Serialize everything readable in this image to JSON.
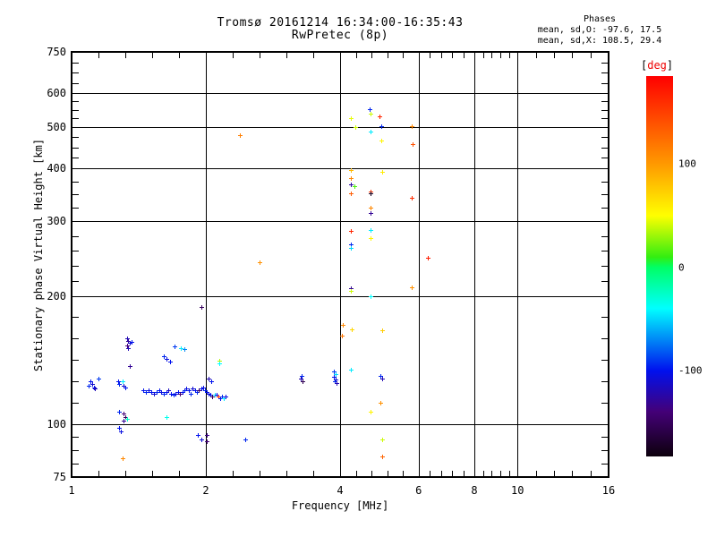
{
  "title": {
    "line1": "Tromsø 20161214 16:34:00-16:35:43",
    "line2": "RwPretec (8p)"
  },
  "annotation": {
    "header": "Phases",
    "line_o": "mean, sd,O: -97.6, 17.5",
    "line_x": "mean, sd,X: 108.5, 29.4"
  },
  "chart_data": {
    "type": "scatter",
    "title": "Tromsø 20161214 16:34:00-16:35:43",
    "subtitle": "RwPretec (8p)",
    "xlabel": "Frequency [MHz]",
    "ylabel": "Stationary phase Virtual Height [km]",
    "x_scale": "log",
    "y_scale": "log",
    "xlim": [
      1,
      16
    ],
    "ylim": [
      75,
      750
    ],
    "x_majors": [
      1,
      2,
      4,
      6,
      8,
      10,
      16
    ],
    "y_majors": [
      75,
      100,
      200,
      300,
      400,
      500,
      600,
      750
    ],
    "x_minor_per_interval": 4,
    "y_minor_per_interval": [
      3,
      5,
      4,
      3,
      3,
      3,
      3
    ],
    "grid": true,
    "marker": "plus",
    "colorbar": {
      "bracket_open": "[",
      "label_text": "deg",
      "bracket_close": "]",
      "label_color": "#ee0000",
      "ticks": [
        100,
        0,
        -100
      ],
      "value_range": [
        185,
        -183
      ],
      "anchors": [
        [
          185,
          "#ff0000"
        ],
        [
          100,
          "#ff9900"
        ],
        [
          50,
          "#ffff00"
        ],
        [
          10,
          "#33ee11"
        ],
        [
          0,
          "#00ff66"
        ],
        [
          -40,
          "#00ffff"
        ],
        [
          -100,
          "#0011ee"
        ],
        [
          -140,
          "#440077"
        ],
        [
          -183,
          "#0c000c"
        ]
      ]
    },
    "points": [
      [
        1.45,
        120,
        -100
      ],
      [
        1.47,
        119,
        -95
      ],
      [
        1.49,
        120,
        -105
      ],
      [
        1.51,
        119,
        -100
      ],
      [
        1.53,
        118,
        -110
      ],
      [
        1.55,
        119,
        -95
      ],
      [
        1.57,
        120,
        -100
      ],
      [
        1.59,
        119,
        -105
      ],
      [
        1.61,
        118,
        -95
      ],
      [
        1.63,
        119,
        -100
      ],
      [
        1.65,
        120,
        -115
      ],
      [
        1.67,
        118,
        -100
      ],
      [
        1.69,
        117,
        -95
      ],
      [
        1.71,
        118,
        -105
      ],
      [
        1.73,
        119,
        -100
      ],
      [
        1.75,
        118,
        -140
      ],
      [
        1.77,
        119,
        -100
      ],
      [
        1.79,
        120,
        -95
      ],
      [
        1.81,
        121,
        -105
      ],
      [
        1.83,
        120,
        -100
      ],
      [
        1.85,
        118,
        -95
      ],
      [
        1.87,
        121,
        -110
      ],
      [
        1.89,
        120,
        -100
      ],
      [
        1.91,
        119,
        -95
      ],
      [
        1.93,
        120,
        -150
      ],
      [
        1.95,
        121,
        -100
      ],
      [
        1.97,
        122,
        -105
      ],
      [
        1.99,
        120,
        -95
      ],
      [
        2.01,
        119,
        -100
      ],
      [
        2.03,
        118,
        -110
      ],
      [
        2.05,
        117,
        -100
      ],
      [
        2.07,
        116,
        -150
      ],
      [
        2.09,
        117,
        -45
      ],
      [
        2.11,
        117,
        -100
      ],
      [
        2.13,
        116,
        160
      ],
      [
        2.15,
        115,
        -100
      ],
      [
        2.17,
        116,
        -95
      ],
      [
        2.19,
        115,
        -45
      ],
      [
        2.21,
        116,
        -105
      ],
      [
        1.09,
        123,
        -95
      ],
      [
        1.1,
        126,
        -100
      ],
      [
        1.11,
        124,
        -110
      ],
      [
        1.12,
        122,
        -100
      ],
      [
        1.13,
        121,
        -120
      ],
      [
        1.15,
        128,
        -90
      ],
      [
        1.27,
        126,
        -100
      ],
      [
        1.28,
        124,
        -95
      ],
      [
        1.3,
        126,
        -45
      ],
      [
        1.31,
        123,
        -110
      ],
      [
        1.32,
        122,
        -100
      ],
      [
        1.28,
        107,
        -95
      ],
      [
        1.28,
        98,
        -100
      ],
      [
        1.29,
        96,
        -105
      ],
      [
        1.31,
        106,
        -140
      ],
      [
        1.32,
        104,
        -150
      ],
      [
        1.31,
        102,
        -130
      ],
      [
        1.33,
        103,
        -25
      ],
      [
        1.3,
        83,
        110
      ],
      [
        1.33,
        159,
        -120
      ],
      [
        1.34,
        157,
        -130
      ],
      [
        1.35,
        155,
        -110
      ],
      [
        1.33,
        153,
        -140
      ],
      [
        1.34,
        151,
        -120
      ],
      [
        1.36,
        156,
        -100
      ],
      [
        1.35,
        137,
        -130
      ],
      [
        1.61,
        144,
        -95
      ],
      [
        1.63,
        142,
        -105
      ],
      [
        1.66,
        140,
        -100
      ],
      [
        1.7,
        152,
        -90
      ],
      [
        1.76,
        151,
        -45
      ],
      [
        1.79,
        150,
        -70
      ],
      [
        1.63,
        104,
        -35
      ],
      [
        1.92,
        94,
        -100
      ],
      [
        1.95,
        92,
        -110
      ],
      [
        2.01,
        94,
        -135
      ],
      [
        2.01,
        91,
        -140
      ],
      [
        2.45,
        92,
        -95
      ],
      [
        2.03,
        128,
        -120
      ],
      [
        2.06,
        126,
        -100
      ],
      [
        1.95,
        188,
        -150
      ],
      [
        2.14,
        141,
        35
      ],
      [
        2.14,
        139,
        -40
      ],
      [
        2.38,
        478,
        115
      ],
      [
        2.64,
        240,
        105
      ],
      [
        3.28,
        130,
        -95
      ],
      [
        3.27,
        128,
        -120
      ],
      [
        3.29,
        126,
        -155
      ],
      [
        3.88,
        133,
        -90
      ],
      [
        3.9,
        131,
        -50
      ],
      [
        3.87,
        129,
        -100
      ],
      [
        3.91,
        127,
        -110
      ],
      [
        3.89,
        126,
        -95
      ],
      [
        3.92,
        125,
        -120
      ],
      [
        4.23,
        134,
        -45
      ],
      [
        4.05,
        171,
        110
      ],
      [
        4.25,
        167,
        70
      ],
      [
        4.03,
        161,
        120
      ],
      [
        4.97,
        166,
        75
      ],
      [
        4.23,
        524,
        45
      ],
      [
        4.33,
        499,
        40
      ],
      [
        4.23,
        395,
        85
      ],
      [
        4.23,
        379,
        110
      ],
      [
        4.22,
        366,
        -125
      ],
      [
        4.31,
        362,
        15
      ],
      [
        4.23,
        348,
        135
      ],
      [
        4.23,
        284,
        165
      ],
      [
        4.23,
        264,
        -95
      ],
      [
        4.23,
        259,
        -50
      ],
      [
        4.23,
        209,
        -130
      ],
      [
        4.23,
        206,
        40
      ],
      [
        4.65,
        550,
        -95
      ],
      [
        4.68,
        537,
        40
      ],
      [
        4.68,
        487,
        -45
      ],
      [
        4.68,
        352,
        155
      ],
      [
        4.68,
        349,
        -175
      ],
      [
        4.68,
        322,
        110
      ],
      [
        4.68,
        314,
        -130
      ],
      [
        4.68,
        286,
        -45
      ],
      [
        4.68,
        274,
        55
      ],
      [
        4.68,
        200,
        -40
      ],
      [
        4.68,
        107,
        55
      ],
      [
        4.91,
        530,
        165
      ],
      [
        4.95,
        501,
        -95
      ],
      [
        4.95,
        464,
        55
      ],
      [
        4.98,
        391,
        60
      ],
      [
        4.93,
        130,
        -95
      ],
      [
        4.97,
        128,
        -120
      ],
      [
        4.93,
        112,
        105
      ],
      [
        4.98,
        92,
        40
      ],
      [
        4.98,
        84,
        130
      ],
      [
        5.79,
        501,
        110
      ],
      [
        5.81,
        455,
        140
      ],
      [
        5.79,
        340,
        160
      ],
      [
        5.79,
        210,
        105
      ],
      [
        6.29,
        246,
        170
      ]
    ]
  }
}
